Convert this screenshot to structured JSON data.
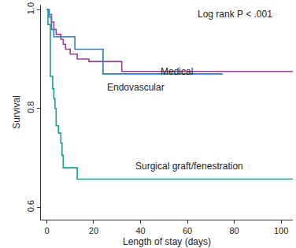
{
  "chart_data": {
    "type": "line",
    "line_style": "step",
    "x_label": "Length of stay (days)",
    "y_label": "Survival",
    "annotations": [
      "Log rank P < .001"
    ],
    "xlim": [
      -2.5,
      105
    ],
    "xticks": [
      0,
      20,
      40,
      60,
      80,
      100
    ],
    "ylim": [
      0.575,
      1.01
    ],
    "yticks": [
      0.6,
      0.8,
      {
        "value": 1,
        "label": "1.0"
      }
    ],
    "grid": false,
    "series": [
      {
        "name": "Medical",
        "color": "#a33d8f",
        "x": [
          0,
          1,
          2,
          3,
          4,
          6,
          7,
          8,
          10,
          13,
          18,
          32,
          105
        ],
        "values": [
          1.0,
          0.99,
          0.975,
          0.96,
          0.95,
          0.94,
          0.93,
          0.92,
          0.91,
          0.9,
          0.895,
          0.875,
          0.875
        ]
      },
      {
        "name": "Endovascular",
        "color": "#2b7fc1",
        "x": [
          0,
          1,
          2,
          3,
          12,
          24,
          75
        ],
        "values": [
          1.0,
          0.985,
          0.96,
          0.945,
          0.92,
          0.87,
          0.87
        ]
      },
      {
        "name": "Surgical graft/fenestration",
        "color": "#16a08c",
        "x": [
          0,
          0.5,
          1.5,
          2.5,
          3,
          3.5,
          4,
          5,
          6,
          6.5,
          7,
          13,
          105
        ],
        "values": [
          1.0,
          0.97,
          0.865,
          0.84,
          0.82,
          0.8,
          0.765,
          0.75,
          0.73,
          0.705,
          0.68,
          0.657,
          0.657
        ]
      }
    ]
  }
}
